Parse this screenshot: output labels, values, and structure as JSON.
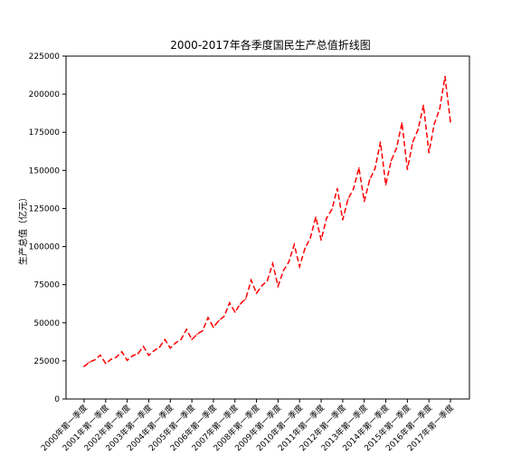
{
  "chart_data": {
    "type": "line",
    "title": "2000-2017年各季度国民生产总值折线图",
    "xlabel": "",
    "ylabel": "生产总值（亿元）",
    "ylim": [
      0,
      225000
    ],
    "yticks": [
      0,
      25000,
      50000,
      75000,
      100000,
      125000,
      150000,
      175000,
      200000,
      225000
    ],
    "xtick_labels": [
      "2000年第一季度",
      "2001年第一季度",
      "2002年第一季度",
      "2003年第一季度",
      "2004年第一季度",
      "2005年第一季度",
      "2006年第一季度",
      "2007年第一季度",
      "2008年第一季度",
      "2009年第一季度",
      "2010年第一季度",
      "2011年第一季度",
      "2012年第一季度",
      "2013年第一季度",
      "2014年第一季度",
      "2015年第一季度",
      "2016年第一季度",
      "2017年第一季度"
    ],
    "grid": false,
    "legend": "none",
    "series": [
      {
        "color": "#ff0000",
        "linestyle": "dashed",
        "values": [
          21400,
          24200,
          25700,
          28800,
          23300,
          26000,
          27500,
          31000,
          25400,
          28300,
          29800,
          34500,
          28700,
          31700,
          34000,
          39000,
          33400,
          36900,
          39100,
          45700,
          39000,
          42600,
          44800,
          53400,
          47100,
          51400,
          54300,
          63100,
          57000,
          62400,
          65700,
          78000,
          69400,
          74300,
          77600,
          88800,
          74100,
          84300,
          89900,
          101300,
          86900,
          98900,
          105700,
          119300,
          104300,
          118600,
          124500,
          138100,
          117600,
          131200,
          137900,
          151600,
          129700,
          143800,
          151200,
          168600,
          140600,
          156400,
          164600,
          181200,
          150700,
          168600,
          177000,
          192700,
          161600,
          180400,
          190300,
          211600,
          181900
        ]
      }
    ]
  }
}
